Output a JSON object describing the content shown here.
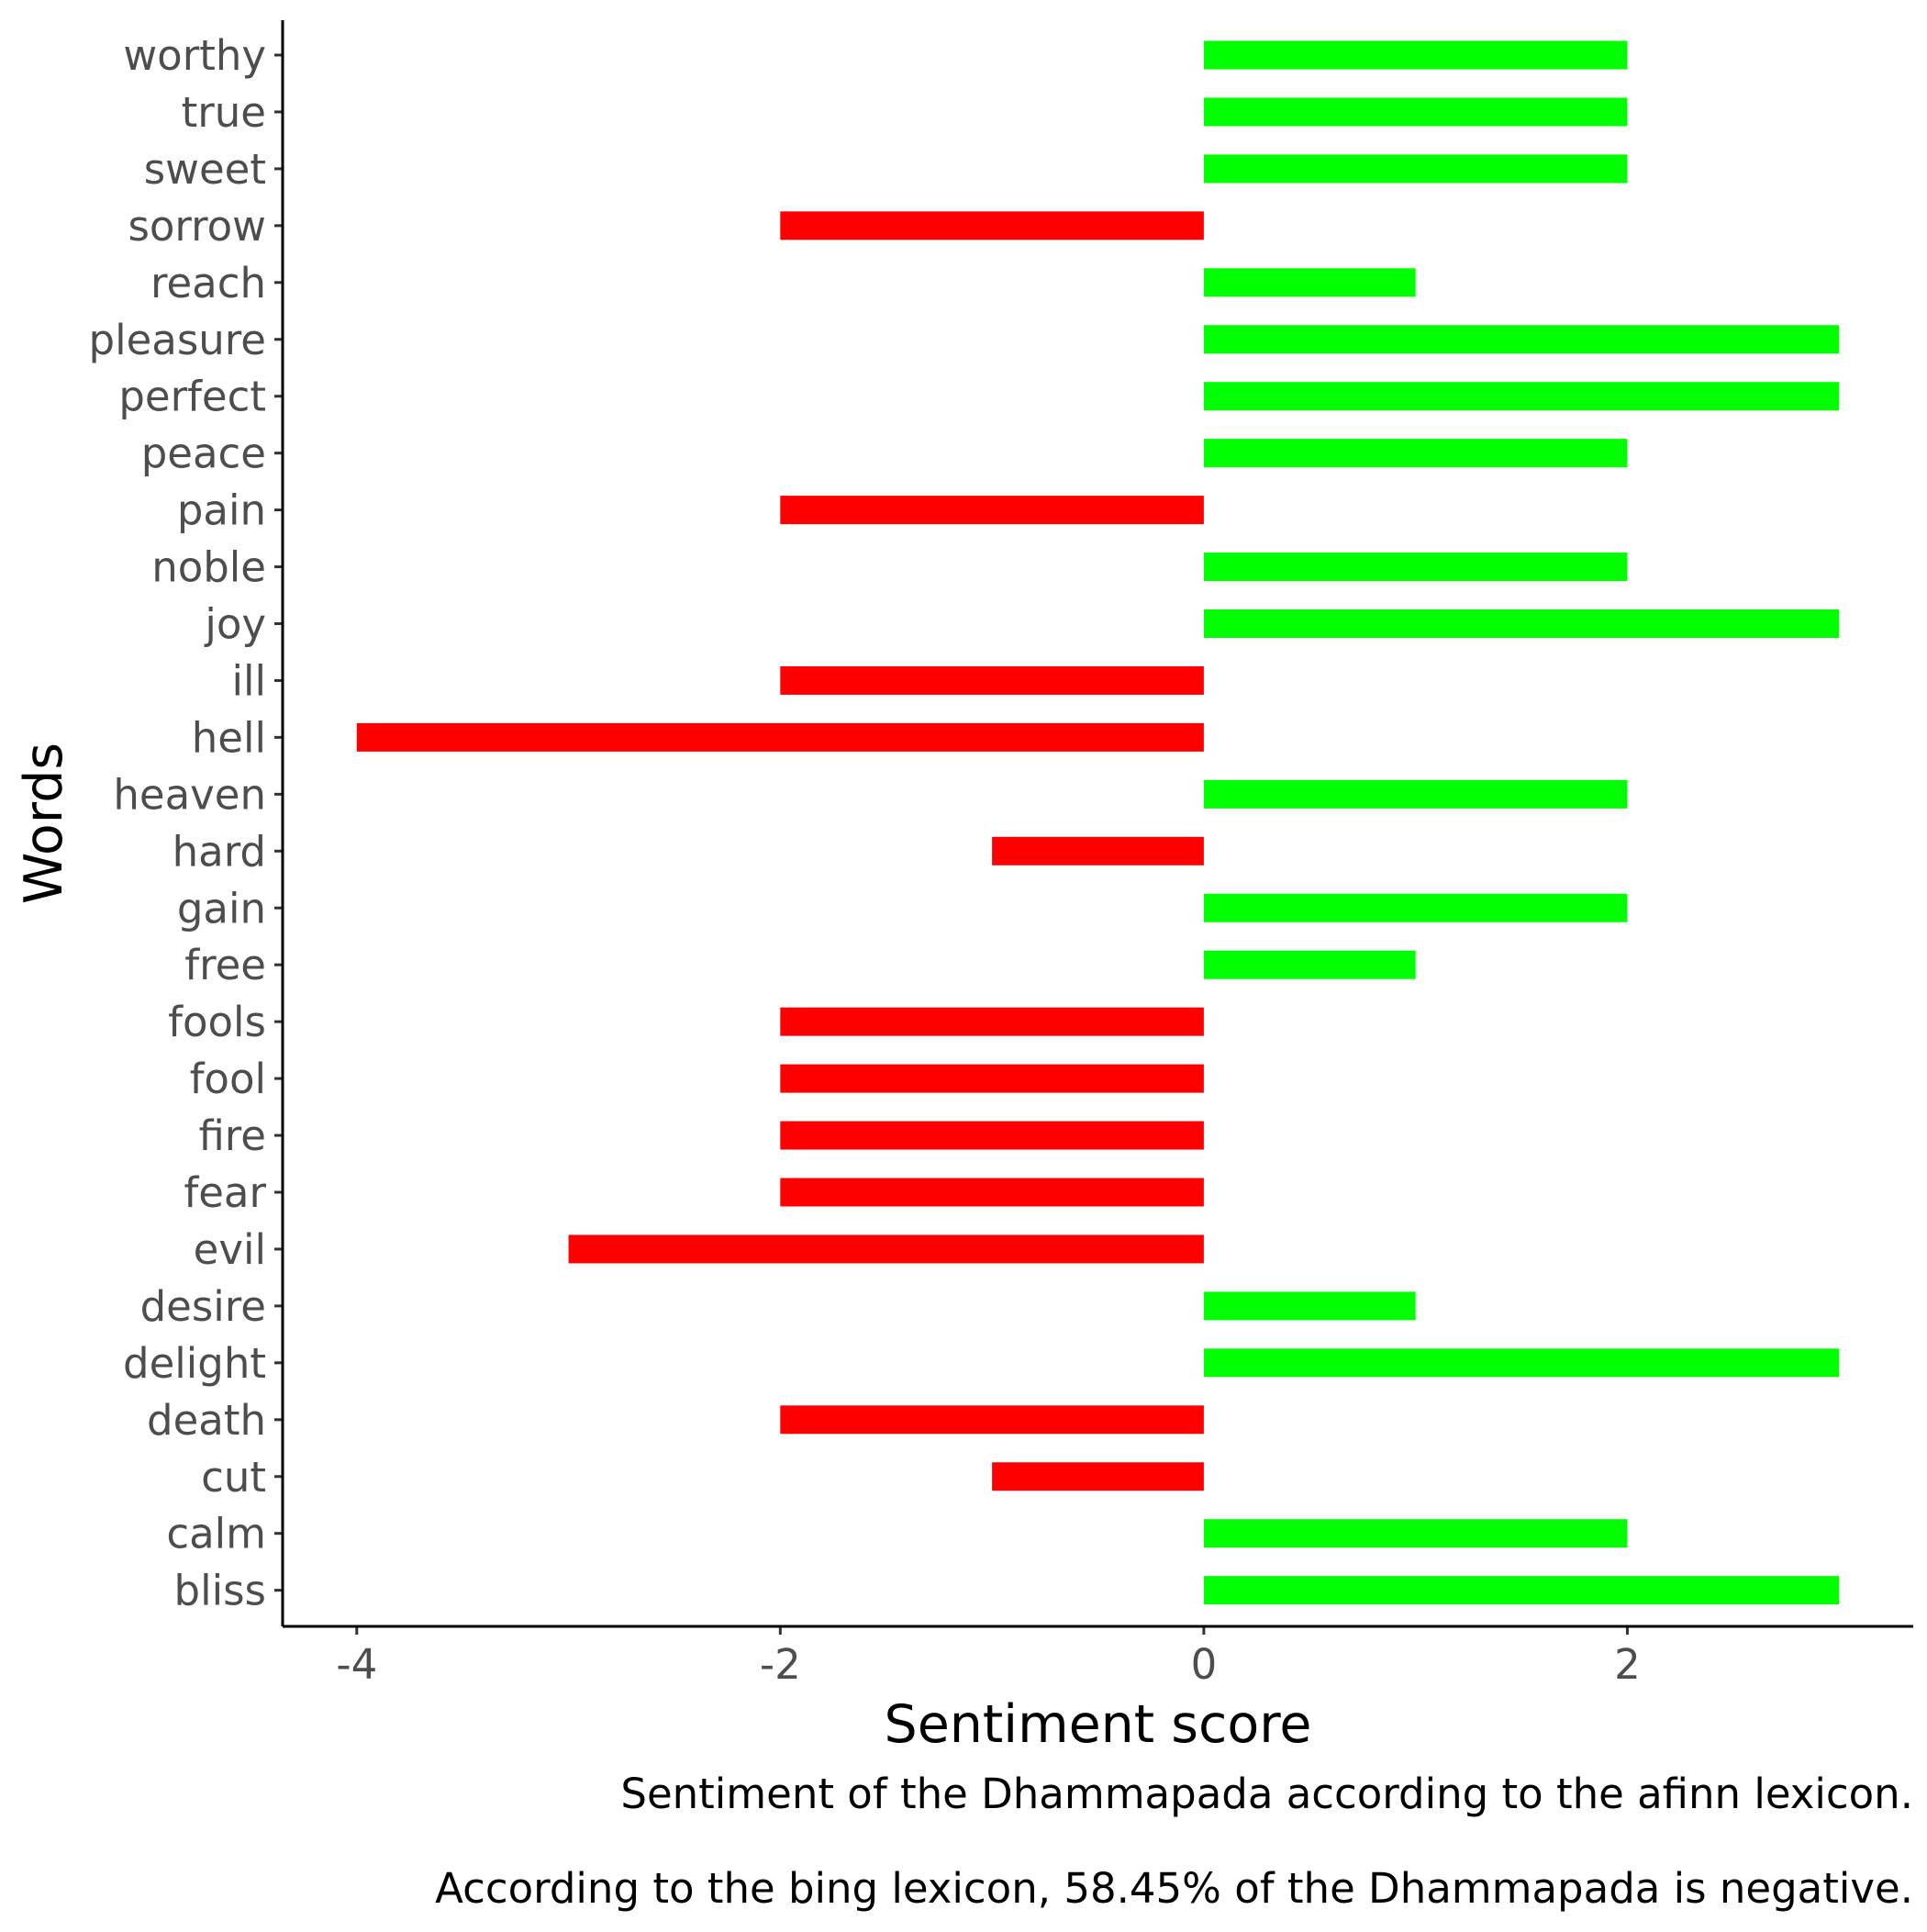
{
  "chart_data": {
    "type": "bar",
    "orientation": "horizontal",
    "categories": [
      "worthy",
      "true",
      "sweet",
      "sorrow",
      "reach",
      "pleasure",
      "perfect",
      "peace",
      "pain",
      "noble",
      "joy",
      "ill",
      "hell",
      "heaven",
      "hard",
      "gain",
      "free",
      "fools",
      "fool",
      "fire",
      "fear",
      "evil",
      "desire",
      "delight",
      "death",
      "cut",
      "calm",
      "bliss"
    ],
    "values": [
      2,
      2,
      2,
      -2,
      1,
      3,
      3,
      2,
      -2,
      2,
      3,
      -2,
      -4,
      2,
      -1,
      2,
      1,
      -2,
      -2,
      -2,
      -2,
      -3,
      1,
      3,
      -2,
      -1,
      2,
      3
    ],
    "xlabel": "Sentiment score",
    "ylabel": "Words",
    "xlim": [
      -4.35,
      3.35
    ],
    "xticks": [
      -4,
      -2,
      0,
      2
    ],
    "xtick_labels": [
      "-4",
      "-2",
      "0",
      "2"
    ],
    "grid": false,
    "legend": "none",
    "positive_color": "#00FF00",
    "negative_color": "#FF0000",
    "captions": [
      "Sentiment of the Dhammapada according to the afinn lexicon.",
      "According to the bing lexicon, 58.45% of the Dhammapada is negative."
    ]
  }
}
